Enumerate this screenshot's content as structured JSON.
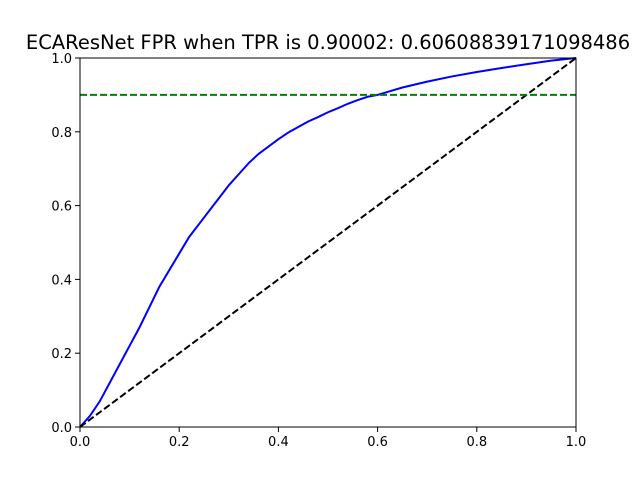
{
  "chart_data": {
    "type": "line",
    "title": "ECAResNet FPR when TPR is 0.90002: 0.60608839171098486",
    "xlabel": "",
    "ylabel": "",
    "xlim": [
      0.0,
      1.0
    ],
    "ylim": [
      0.0,
      1.0
    ],
    "x_ticks": [
      "0.0",
      "0.2",
      "0.4",
      "0.6",
      "0.8",
      "1.0"
    ],
    "y_ticks": [
      "0.0",
      "0.2",
      "0.4",
      "0.6",
      "0.8",
      "1.0"
    ],
    "grid": false,
    "legend": "none",
    "series": [
      {
        "color": "#0000ff",
        "style": "solid",
        "x": [
          0.0,
          0.02,
          0.04,
          0.06,
          0.08,
          0.1,
          0.12,
          0.14,
          0.16,
          0.18,
          0.2,
          0.22,
          0.24,
          0.26,
          0.28,
          0.3,
          0.32,
          0.34,
          0.36,
          0.38,
          0.4,
          0.42,
          0.44,
          0.46,
          0.48,
          0.5,
          0.52,
          0.54,
          0.56,
          0.58,
          0.6,
          0.62,
          0.65,
          0.7,
          0.75,
          0.8,
          0.85,
          0.9,
          0.95,
          1.0
        ],
        "y": [
          0.0,
          0.03,
          0.07,
          0.12,
          0.17,
          0.22,
          0.27,
          0.325,
          0.38,
          0.425,
          0.47,
          0.515,
          0.55,
          0.585,
          0.62,
          0.655,
          0.685,
          0.715,
          0.74,
          0.76,
          0.78,
          0.798,
          0.813,
          0.828,
          0.84,
          0.853,
          0.864,
          0.876,
          0.886,
          0.895,
          0.9,
          0.908,
          0.92,
          0.936,
          0.95,
          0.962,
          0.973,
          0.983,
          0.993,
          1.0
        ]
      },
      {
        "color": "#000000",
        "style": "dashed",
        "x": [
          0.0,
          1.0
        ],
        "y": [
          0.0,
          1.0
        ]
      },
      {
        "color": "#008000",
        "style": "dashed",
        "x": [
          0.0,
          1.0
        ],
        "y": [
          0.9,
          0.9
        ]
      }
    ]
  }
}
